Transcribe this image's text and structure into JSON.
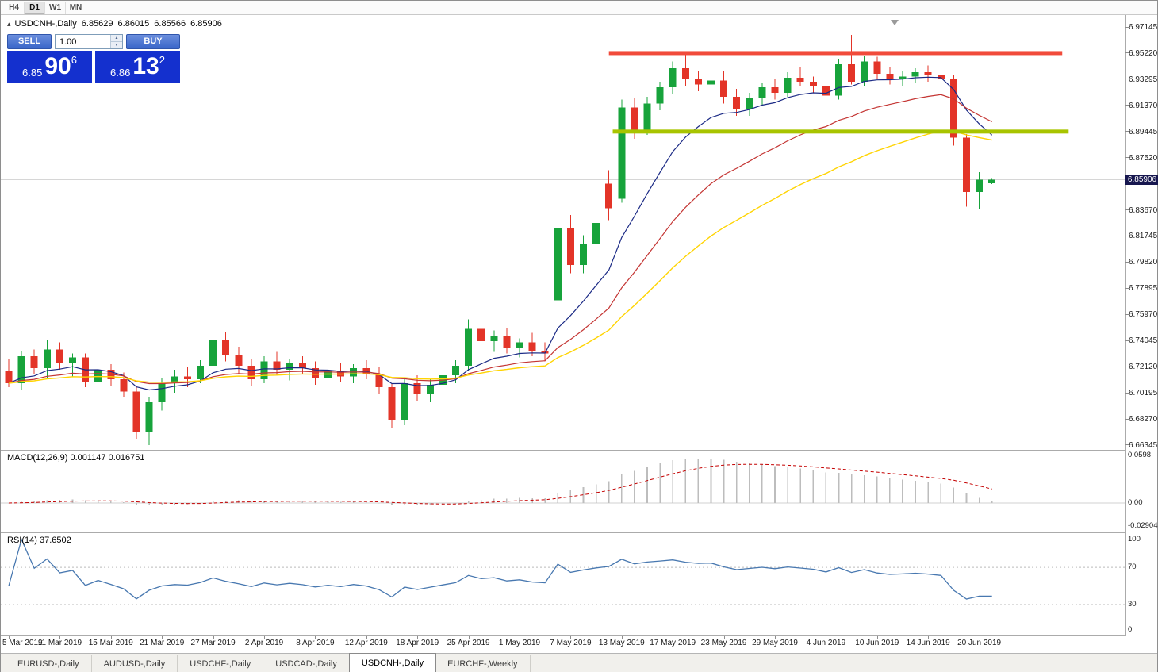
{
  "toolbar": {
    "buttons": [
      "H4",
      "D1",
      "W1",
      "MN"
    ],
    "active": "D1"
  },
  "chart_header": {
    "collapse_icon": "▴",
    "title": "USDCNH-,Daily",
    "open": "6.85629",
    "high": "6.86015",
    "low": "6.85566",
    "close": "6.85906"
  },
  "trade_panel": {
    "sell_label": "SELL",
    "buy_label": "BUY",
    "volume": "1.00",
    "bid": {
      "big_figure": "6.85",
      "pips": "90",
      "point": "6"
    },
    "ask": {
      "big_figure": "6.86",
      "pips": "13",
      "point": "2"
    }
  },
  "price_scale": {
    "labels": [
      "6.97145",
      "6.95220",
      "6.93295",
      "6.91370",
      "6.89445",
      "6.87520",
      "6.83670",
      "6.81745",
      "6.79820",
      "6.77895",
      "6.75970",
      "6.74045",
      "6.72120",
      "6.70195",
      "6.68270",
      "6.66345"
    ],
    "current_price_badge": "6.85906"
  },
  "macd_panel": {
    "title": "MACD(12,26,9) 0.001147 0.016751",
    "scale_labels": [
      {
        "value": 0.0598,
        "label": "0.0598"
      },
      {
        "value": 0,
        "label": "0.00"
      },
      {
        "value": -0.029045,
        "label": "-0.029045"
      }
    ]
  },
  "rsi_panel": {
    "title": "RSI(14) 37.6502",
    "scale_labels": [
      {
        "value": 100,
        "label": "100"
      },
      {
        "value": 70,
        "label": "70"
      },
      {
        "value": 30,
        "label": "30"
      },
      {
        "value": 0,
        "label": "0"
      }
    ]
  },
  "x_axis_ticks": [
    {
      "i": 0,
      "label": "5 Mar 2019"
    },
    {
      "i": 4,
      "label": "11 Mar 2019"
    },
    {
      "i": 8,
      "label": "15 Mar 2019"
    },
    {
      "i": 12,
      "label": "21 Mar 2019"
    },
    {
      "i": 16,
      "label": "27 Mar 2019"
    },
    {
      "i": 20,
      "label": "2 Apr 2019"
    },
    {
      "i": 24,
      "label": "8 Apr 2019"
    },
    {
      "i": 28,
      "label": "12 Apr 2019"
    },
    {
      "i": 32,
      "label": "18 Apr 2019"
    },
    {
      "i": 36,
      "label": "25 Apr 2019"
    },
    {
      "i": 40,
      "label": "1 May 2019"
    },
    {
      "i": 44,
      "label": "7 May 2019"
    },
    {
      "i": 48,
      "label": "13 May 2019"
    },
    {
      "i": 52,
      "label": "17 May 2019"
    },
    {
      "i": 56,
      "label": "23 May 2019"
    },
    {
      "i": 60,
      "label": "29 May 2019"
    },
    {
      "i": 64,
      "label": "4 Jun 2019"
    },
    {
      "i": 68,
      "label": "10 Jun 2019"
    },
    {
      "i": 72,
      "label": "14 Jun 2019"
    },
    {
      "i": 76,
      "label": "20 Jun 2019"
    }
  ],
  "tabs": {
    "items": [
      "EURUSD-,Daily",
      "AUDUSD-,Daily",
      "USDCHF-,Daily",
      "USDCAD-,Daily",
      "USDCNH-,Daily",
      "EURCHF-,Weekly"
    ],
    "active": "USDCNH-,Daily"
  },
  "colors": {
    "bull": "#17a33b",
    "bear": "#e33428",
    "ma_fast": "#1b2a85",
    "ma_mid": "#c43533",
    "ma_slow": "#ffd402",
    "resistance": "#f14b3b",
    "support": "#a8c400",
    "macd_histogram": "#bdbdbd",
    "macd_signal": "#c40000",
    "rsi_line": "#4878b0",
    "price_line": "#c9c9c9",
    "badge_bg": "#17174f",
    "price_panel_bg": "#1430ce",
    "trade_button_bg": "#3a66c9"
  },
  "chart_data": {
    "type": "candlestick",
    "symbol": "USDCNH",
    "period": "Daily",
    "y_range": {
      "top": 6.97145,
      "bottom": 6.66345
    },
    "candles": [
      [
        6.718,
        6.727,
        6.706,
        6.709
      ],
      [
        6.709,
        6.733,
        6.704,
        6.729
      ],
      [
        6.729,
        6.734,
        6.716,
        6.72
      ],
      [
        6.72,
        6.741,
        6.713,
        6.734
      ],
      [
        6.734,
        6.739,
        6.719,
        6.724
      ],
      [
        6.724,
        6.731,
        6.714,
        6.728
      ],
      [
        6.728,
        6.731,
        6.706,
        6.71
      ],
      [
        6.71,
        6.724,
        6.703,
        6.719
      ],
      [
        6.719,
        6.723,
        6.707,
        6.712
      ],
      [
        6.712,
        6.717,
        6.699,
        6.703
      ],
      [
        6.703,
        6.707,
        6.668,
        6.673
      ],
      [
        6.673,
        6.699,
        6.6635,
        6.695
      ],
      [
        6.695,
        6.713,
        6.689,
        6.709
      ],
      [
        6.709,
        6.719,
        6.702,
        6.714
      ],
      [
        6.714,
        6.721,
        6.706,
        6.712
      ],
      [
        6.712,
        6.726,
        6.709,
        6.722
      ],
      [
        6.722,
        6.752,
        6.719,
        6.741
      ],
      [
        6.741,
        6.747,
        6.725,
        6.73
      ],
      [
        6.73,
        6.736,
        6.716,
        6.722
      ],
      [
        6.722,
        6.727,
        6.707,
        6.712
      ],
      [
        6.712,
        6.729,
        6.709,
        6.725
      ],
      [
        6.725,
        6.732,
        6.715,
        6.719
      ],
      [
        6.719,
        6.727,
        6.711,
        6.724
      ],
      [
        6.724,
        6.729,
        6.716,
        6.72
      ],
      [
        6.72,
        6.725,
        6.708,
        6.713
      ],
      [
        6.713,
        6.721,
        6.706,
        6.718
      ],
      [
        6.718,
        6.724,
        6.71,
        6.714
      ],
      [
        6.714,
        6.723,
        6.709,
        6.72
      ],
      [
        6.72,
        6.726,
        6.712,
        6.716
      ],
      [
        6.716,
        6.721,
        6.701,
        6.706
      ],
      [
        6.706,
        6.709,
        6.676,
        6.682
      ],
      [
        6.682,
        6.713,
        6.678,
        6.709
      ],
      [
        6.709,
        6.715,
        6.696,
        6.701
      ],
      [
        6.701,
        6.712,
        6.695,
        6.708
      ],
      [
        6.708,
        6.719,
        6.702,
        6.715
      ],
      [
        6.715,
        6.726,
        6.709,
        6.722
      ],
      [
        6.722,
        6.756,
        6.718,
        6.749
      ],
      [
        6.749,
        6.757,
        6.735,
        6.74
      ],
      [
        6.74,
        6.748,
        6.732,
        6.744
      ],
      [
        6.744,
        6.75,
        6.731,
        6.735
      ],
      [
        6.735,
        6.742,
        6.728,
        6.739
      ],
      [
        6.739,
        6.746,
        6.729,
        6.733
      ],
      [
        6.733,
        6.739,
        6.725,
        6.731
      ],
      [
        6.77,
        6.828,
        6.765,
        6.823
      ],
      [
        6.823,
        6.833,
        6.79,
        6.796
      ],
      [
        6.796,
        6.818,
        6.79,
        6.812
      ],
      [
        6.812,
        6.831,
        6.804,
        6.827
      ],
      [
        6.856,
        6.866,
        6.829,
        6.838
      ],
      [
        6.845,
        6.918,
        6.842,
        6.912
      ],
      [
        6.912,
        6.919,
        6.889,
        6.895
      ],
      [
        6.895,
        6.92,
        6.892,
        6.915
      ],
      [
        6.915,
        6.931,
        6.91,
        6.927
      ],
      [
        6.927,
        6.946,
        6.922,
        6.941
      ],
      [
        6.941,
        6.9525,
        6.928,
        6.933
      ],
      [
        6.933,
        6.939,
        6.924,
        6.929
      ],
      [
        6.929,
        6.936,
        6.923,
        6.932
      ],
      [
        6.932,
        6.939,
        6.915,
        6.92
      ],
      [
        6.92,
        6.926,
        6.906,
        6.911
      ],
      [
        6.911,
        6.923,
        6.906,
        6.919
      ],
      [
        6.919,
        6.93,
        6.914,
        6.927
      ],
      [
        6.927,
        6.933,
        6.918,
        6.923
      ],
      [
        6.923,
        6.938,
        6.92,
        6.934
      ],
      [
        6.934,
        6.942,
        6.928,
        6.931
      ],
      [
        6.931,
        6.935,
        6.923,
        6.928
      ],
      [
        6.928,
        6.933,
        6.917,
        6.921
      ],
      [
        6.921,
        6.948,
        6.918,
        6.944
      ],
      [
        6.944,
        6.9655,
        6.929,
        6.931
      ],
      [
        6.931,
        6.95,
        6.928,
        6.946
      ],
      [
        6.946,
        6.9495,
        6.933,
        6.937
      ],
      [
        6.937,
        6.942,
        6.929,
        6.933
      ],
      [
        6.933,
        6.939,
        6.928,
        6.935
      ],
      [
        6.935,
        6.941,
        6.93,
        6.938
      ],
      [
        6.938,
        6.943,
        6.931,
        6.936
      ],
      [
        6.936,
        6.94,
        6.93,
        6.933
      ],
      [
        6.933,
        6.9365,
        6.884,
        6.89
      ],
      [
        6.89,
        6.8925,
        6.839,
        6.85
      ],
      [
        6.85,
        6.8645,
        6.8375,
        6.859
      ],
      [
        6.85629,
        6.86015,
        6.85566,
        6.85906
      ]
    ],
    "overlays": {
      "horizontal_lines": [
        {
          "name": "resistance",
          "price": 6.9522,
          "color_key": "resistance",
          "from_index": 47,
          "to_index": 82.5,
          "thickness": 5
        },
        {
          "name": "support",
          "price": 6.8944,
          "color_key": "support",
          "from_index": 47.3,
          "to_index": 83,
          "thickness": 5
        }
      ],
      "moving_averages": [
        {
          "period": 9,
          "method": "ema",
          "color_key": "ma_fast"
        },
        {
          "period": 19,
          "method": "ema",
          "color_key": "ma_mid"
        },
        {
          "period": 32,
          "method": "ema",
          "color_key": "ma_slow"
        }
      ],
      "current_price_line": 6.85906
    },
    "indicators": {
      "macd": {
        "fast": 12,
        "slow": 26,
        "signal": 9,
        "display_values": [
          0.001147,
          0.016751
        ],
        "scale_max": 0.0598,
        "scale_min": -0.029045
      },
      "rsi": {
        "period": 14,
        "value": 37.6502,
        "levels": [
          70,
          30
        ]
      }
    }
  }
}
